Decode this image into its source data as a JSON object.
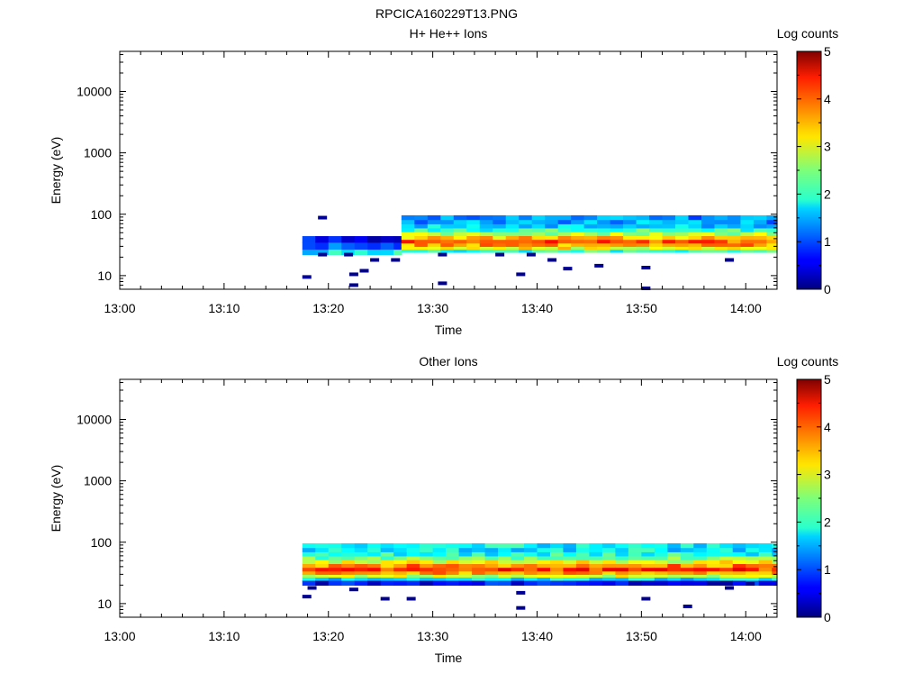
{
  "figure_title": "RPCICA160229T13.PNG",
  "chart_data": [
    {
      "type": "heatmap",
      "title": "H+ He++ Ions",
      "xlabel": "Time",
      "ylabel": "Energy (eV)",
      "x_ticks": [
        "13:00",
        "13:10",
        "13:20",
        "13:30",
        "13:40",
        "13:50",
        "14:00"
      ],
      "xlim": [
        "13:00",
        "14:03"
      ],
      "y_scale": "log",
      "y_ticks": [
        "10",
        "100",
        "1000",
        "10000"
      ],
      "ylim": [
        6,
        45000
      ],
      "colorbar": {
        "label": "Log counts",
        "ticks": [
          "0",
          "1",
          "2",
          "3",
          "4",
          "5"
        ],
        "range": [
          0,
          5
        ],
        "colormap": "jet"
      },
      "data_start": "13:17.5",
      "regime_change": "13:27",
      "segments": [
        {
          "from": "13:17.5",
          "to": "13:27",
          "bands": [
            {
              "e_low": 22,
              "e_high": 27,
              "log_counts": 1.9
            },
            {
              "e_low": 27,
              "e_high": 35,
              "log_counts": 1.1
            },
            {
              "e_low": 35,
              "e_high": 44,
              "log_counts": 0.6
            }
          ]
        },
        {
          "from": "13:27",
          "to": "14:03",
          "bands": [
            {
              "e_low": 24,
              "e_high": 27,
              "log_counts": 2.1
            },
            {
              "e_low": 27,
              "e_high": 30,
              "log_counts": 3.1
            },
            {
              "e_low": 30,
              "e_high": 34,
              "log_counts": 3.6
            },
            {
              "e_low": 34,
              "e_high": 39,
              "log_counts": 3.9
            },
            {
              "e_low": 39,
              "e_high": 45,
              "log_counts": 3.4
            },
            {
              "e_low": 45,
              "e_high": 52,
              "log_counts": 2.7
            },
            {
              "e_low": 52,
              "e_high": 60,
              "log_counts": 2.1
            },
            {
              "e_low": 60,
              "e_high": 70,
              "log_counts": 1.7
            },
            {
              "e_low": 70,
              "e_high": 82,
              "log_counts": 1.4
            },
            {
              "e_low": 82,
              "e_high": 96,
              "log_counts": 1.3
            }
          ]
        }
      ],
      "sparse_points": [
        {
          "t": "13:17.5",
          "e": 9.5,
          "log_counts": 0.1
        },
        {
          "t": "13:19",
          "e": 22,
          "log_counts": 0.1
        },
        {
          "t": "13:19",
          "e": 88,
          "log_counts": 0.1
        },
        {
          "t": "13:21.5",
          "e": 22,
          "log_counts": 0.1
        },
        {
          "t": "13:22",
          "e": 7,
          "log_counts": 0.1
        },
        {
          "t": "13:22",
          "e": 10.5,
          "log_counts": 0.1
        },
        {
          "t": "13:23",
          "e": 12,
          "log_counts": 0.1
        },
        {
          "t": "13:24",
          "e": 18,
          "log_counts": 0.1
        },
        {
          "t": "13:26",
          "e": 18,
          "log_counts": 0.1
        },
        {
          "t": "13:30.5",
          "e": 22,
          "log_counts": 0.1
        },
        {
          "t": "13:30.5",
          "e": 7.5,
          "log_counts": 0.1
        },
        {
          "t": "13:36",
          "e": 22,
          "log_counts": 0.1
        },
        {
          "t": "13:38",
          "e": 10.5,
          "log_counts": 0.1
        },
        {
          "t": "13:39",
          "e": 22,
          "log_counts": 0.1
        },
        {
          "t": "13:41",
          "e": 18,
          "log_counts": 0.1
        },
        {
          "t": "13:42.5",
          "e": 13,
          "log_counts": 0.1
        },
        {
          "t": "13:45.5",
          "e": 14.5,
          "log_counts": 0.1
        },
        {
          "t": "13:50",
          "e": 13.5,
          "log_counts": 0.1
        },
        {
          "t": "13:50",
          "e": 6.2,
          "log_counts": 0.1
        },
        {
          "t": "13:58",
          "e": 18,
          "log_counts": 0.1
        }
      ]
    },
    {
      "type": "heatmap",
      "title": "Other Ions",
      "xlabel": "Time",
      "ylabel": "Energy (eV)",
      "x_ticks": [
        "13:00",
        "13:10",
        "13:20",
        "13:30",
        "13:40",
        "13:50",
        "14:00"
      ],
      "xlim": [
        "13:00",
        "14:03"
      ],
      "y_scale": "log",
      "y_ticks": [
        "10",
        "100",
        "1000",
        "10000"
      ],
      "ylim": [
        6,
        45000
      ],
      "colorbar": {
        "label": "Log counts",
        "ticks": [
          "0",
          "1",
          "2",
          "3",
          "4",
          "5"
        ],
        "range": [
          0,
          5
        ],
        "colormap": "jet"
      },
      "data_start": "13:17.5",
      "segments": [
        {
          "from": "13:17.5",
          "to": "14:03",
          "bands": [
            {
              "e_low": 20,
              "e_high": 24,
              "log_counts": 0.6
            },
            {
              "e_low": 24,
              "e_high": 27,
              "log_counts": 1.8
            },
            {
              "e_low": 27,
              "e_high": 30,
              "log_counts": 2.9
            },
            {
              "e_low": 30,
              "e_high": 34,
              "log_counts": 3.6
            },
            {
              "e_low": 34,
              "e_high": 39,
              "log_counts": 4.1
            },
            {
              "e_low": 39,
              "e_high": 45,
              "log_counts": 3.7
            },
            {
              "e_low": 45,
              "e_high": 52,
              "log_counts": 3.0
            },
            {
              "e_low": 52,
              "e_high": 60,
              "log_counts": 2.4
            },
            {
              "e_low": 60,
              "e_high": 70,
              "log_counts": 2.0
            },
            {
              "e_low": 70,
              "e_high": 82,
              "log_counts": 1.8
            },
            {
              "e_low": 82,
              "e_high": 96,
              "log_counts": 1.9
            }
          ]
        }
      ],
      "sparse_points": [
        {
          "t": "13:17.5",
          "e": 13,
          "log_counts": 0.1
        },
        {
          "t": "13:18",
          "e": 18,
          "log_counts": 0.1
        },
        {
          "t": "13:22",
          "e": 17,
          "log_counts": 0.1
        },
        {
          "t": "13:25",
          "e": 12,
          "log_counts": 0.1
        },
        {
          "t": "13:27.5",
          "e": 12,
          "log_counts": 0.1
        },
        {
          "t": "13:38",
          "e": 8.5,
          "log_counts": 0.1
        },
        {
          "t": "13:38",
          "e": 15,
          "log_counts": 0.1
        },
        {
          "t": "13:50",
          "e": 12,
          "log_counts": 0.1
        },
        {
          "t": "13:54",
          "e": 9,
          "log_counts": 0.1
        },
        {
          "t": "13:58",
          "e": 18,
          "log_counts": 0.1
        },
        {
          "t": "14:00",
          "e": 21,
          "log_counts": 0.1
        }
      ]
    }
  ]
}
